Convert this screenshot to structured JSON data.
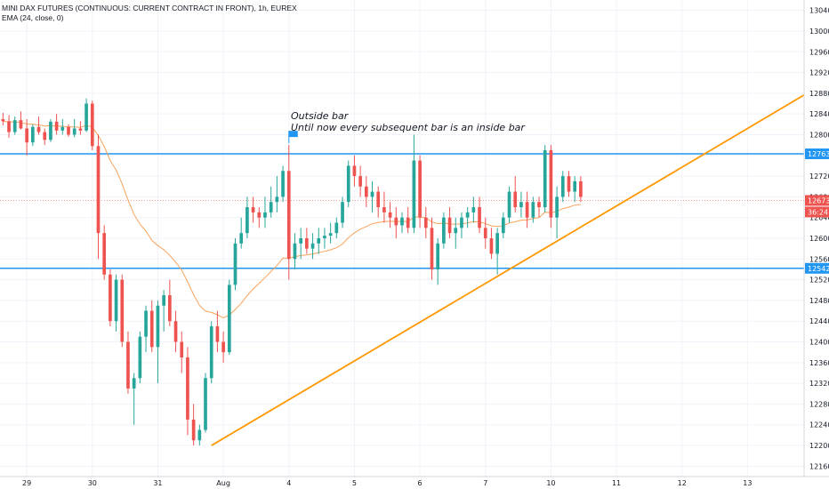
{
  "legend": {
    "title": "MINI DAX FUTURES (CONTINUOUS: CURRENT CONTRACT IN FRONT), 1h, EUREX",
    "ema": "EMA (24, close, 0)"
  },
  "annotation": {
    "line1": "Outside bar",
    "line2": "Until now every subsequent bar is an inside bar"
  },
  "colors": {
    "up": "#26a69a",
    "down": "#ef5350",
    "ema": "#f7a35c",
    "trend": "#ff9800",
    "level": "#2196f3",
    "last_price": "#ef5350",
    "flag": "#2196f3"
  },
  "chart_data": {
    "type": "candlestick",
    "y_ticks": [
      12160,
      12200,
      12240,
      12280,
      12320,
      12360,
      12400,
      12440,
      12480,
      12520,
      12560,
      12600,
      12640,
      12680,
      12720,
      12760,
      12800,
      12840,
      12880,
      12920,
      12960,
      13000,
      13040
    ],
    "ylim": [
      12140,
      13060
    ],
    "x_ticks": [
      {
        "label": "29",
        "bar": 4
      },
      {
        "label": "30",
        "bar": 15
      },
      {
        "label": "31",
        "bar": 26
      },
      {
        "label": "Aug",
        "bar": 37
      },
      {
        "label": "4",
        "bar": 48
      },
      {
        "label": "5",
        "bar": 59
      },
      {
        "label": "6",
        "bar": 70
      },
      {
        "label": "7",
        "bar": 81
      },
      {
        "label": "10",
        "bar": 92
      },
      {
        "label": "11",
        "bar": 103
      },
      {
        "label": "12",
        "bar": 114
      },
      {
        "label": "13",
        "bar": 125
      }
    ],
    "total_slots": 135,
    "horizontal_levels": [
      {
        "value": 12763,
        "label": "12763"
      },
      {
        "value": 12542,
        "label": "12542"
      }
    ],
    "last_price": {
      "value": 12673,
      "label": "12673",
      "countdown": "36:24"
    },
    "trendline": {
      "from": {
        "bar": 35,
        "value": 12200
      },
      "to": {
        "bar": 135,
        "value": 12880
      }
    },
    "flag_bar": 48,
    "candles": [
      [
        12830,
        12842,
        12818,
        12826
      ],
      [
        12826,
        12838,
        12794,
        12805
      ],
      [
        12805,
        12835,
        12800,
        12828
      ],
      [
        12828,
        12845,
        12810,
        12812
      ],
      [
        12812,
        12830,
        12760,
        12785
      ],
      [
        12785,
        12820,
        12778,
        12815
      ],
      [
        12815,
        12835,
        12800,
        12805
      ],
      [
        12805,
        12812,
        12780,
        12790
      ],
      [
        12790,
        12830,
        12786,
        12825
      ],
      [
        12825,
        12840,
        12800,
        12808
      ],
      [
        12808,
        12830,
        12800,
        12815
      ],
      [
        12815,
        12820,
        12796,
        12800
      ],
      [
        12800,
        12830,
        12795,
        12812
      ],
      [
        12812,
        12826,
        12800,
        12808
      ],
      [
        12808,
        12870,
        12805,
        12860
      ],
      [
        12860,
        12866,
        12770,
        12778
      ],
      [
        12778,
        12800,
        12560,
        12610
      ],
      [
        12610,
        12625,
        12520,
        12530
      ],
      [
        12530,
        12540,
        12430,
        12440
      ],
      [
        12440,
        12530,
        12420,
        12520
      ],
      [
        12520,
        12530,
        12390,
        12400
      ],
      [
        12400,
        12420,
        12300,
        12310
      ],
      [
        12310,
        12340,
        12240,
        12330
      ],
      [
        12330,
        12420,
        12320,
        12410
      ],
      [
        12410,
        12470,
        12380,
        12460
      ],
      [
        12460,
        12480,
        12380,
        12390
      ],
      [
        12390,
        12480,
        12320,
        12470
      ],
      [
        12470,
        12500,
        12420,
        12490
      ],
      [
        12490,
        12520,
        12430,
        12440
      ],
      [
        12440,
        12460,
        12380,
        12400
      ],
      [
        12400,
        12420,
        12340,
        12370
      ],
      [
        12370,
        12390,
        12220,
        12250
      ],
      [
        12250,
        12280,
        12200,
        12210
      ],
      [
        12210,
        12240,
        12200,
        12230
      ],
      [
        12230,
        12340,
        12225,
        12330
      ],
      [
        12330,
        12440,
        12320,
        12430
      ],
      [
        12430,
        12460,
        12380,
        12400
      ],
      [
        12400,
        12420,
        12360,
        12380
      ],
      [
        12380,
        12520,
        12375,
        12510
      ],
      [
        12510,
        12600,
        12500,
        12590
      ],
      [
        12590,
        12640,
        12580,
        12610
      ],
      [
        12610,
        12680,
        12600,
        12660
      ],
      [
        12660,
        12680,
        12630,
        12650
      ],
      [
        12650,
        12660,
        12620,
        12640
      ],
      [
        12640,
        12680,
        12620,
        12650
      ],
      [
        12650,
        12700,
        12640,
        12670
      ],
      [
        12670,
        12720,
        12650,
        12680
      ],
      [
        12680,
        12740,
        12670,
        12730
      ],
      [
        12730,
        12780,
        12520,
        12560
      ],
      [
        12560,
        12610,
        12540,
        12590
      ],
      [
        12590,
        12620,
        12560,
        12600
      ],
      [
        12600,
        12620,
        12570,
        12580
      ],
      [
        12580,
        12610,
        12560,
        12590
      ],
      [
        12590,
        12620,
        12570,
        12600
      ],
      [
        12600,
        12620,
        12580,
        12605
      ],
      [
        12605,
        12630,
        12590,
        12610
      ],
      [
        12610,
        12640,
        12600,
        12630
      ],
      [
        12630,
        12680,
        12620,
        12670
      ],
      [
        12670,
        12750,
        12660,
        12740
      ],
      [
        12740,
        12760,
        12700,
        12720
      ],
      [
        12720,
        12740,
        12680,
        12700
      ],
      [
        12700,
        12720,
        12660,
        12680
      ],
      [
        12680,
        12710,
        12650,
        12690
      ],
      [
        12690,
        12700,
        12640,
        12660
      ],
      [
        12660,
        12690,
        12630,
        12650
      ],
      [
        12650,
        12670,
        12620,
        12640
      ],
      [
        12640,
        12660,
        12600,
        12625
      ],
      [
        12625,
        12650,
        12610,
        12640
      ],
      [
        12640,
        12660,
        12610,
        12620
      ],
      [
        12620,
        12800,
        12610,
        12750
      ],
      [
        12750,
        12760,
        12620,
        12640
      ],
      [
        12640,
        12660,
        12600,
        12620
      ],
      [
        12620,
        12640,
        12520,
        12540
      ],
      [
        12540,
        12600,
        12510,
        12590
      ],
      [
        12590,
        12650,
        12580,
        12640
      ],
      [
        12640,
        12660,
        12600,
        12610
      ],
      [
        12610,
        12640,
        12580,
        12620
      ],
      [
        12620,
        12650,
        12600,
        12640
      ],
      [
        12640,
        12660,
        12620,
        12650
      ],
      [
        12650,
        12680,
        12630,
        12660
      ],
      [
        12660,
        12680,
        12610,
        12620
      ],
      [
        12620,
        12640,
        12580,
        12600
      ],
      [
        12600,
        12620,
        12560,
        12570
      ],
      [
        12570,
        12620,
        12530,
        12610
      ],
      [
        12610,
        12650,
        12600,
        12640
      ],
      [
        12640,
        12700,
        12630,
        12690
      ],
      [
        12690,
        12720,
        12650,
        12660
      ],
      [
        12660,
        12690,
        12640,
        12670
      ],
      [
        12670,
        12690,
        12620,
        12640
      ],
      [
        12640,
        12680,
        12630,
        12670
      ],
      [
        12670,
        12680,
        12640,
        12660
      ],
      [
        12660,
        12780,
        12650,
        12770
      ],
      [
        12770,
        12780,
        12620,
        12640
      ],
      [
        12640,
        12700,
        12600,
        12680
      ],
      [
        12680,
        12730,
        12670,
        12720
      ],
      [
        12720,
        12730,
        12680,
        12690
      ],
      [
        12690,
        12720,
        12670,
        12710
      ],
      [
        12710,
        12720,
        12670,
        12680
      ]
    ]
  }
}
